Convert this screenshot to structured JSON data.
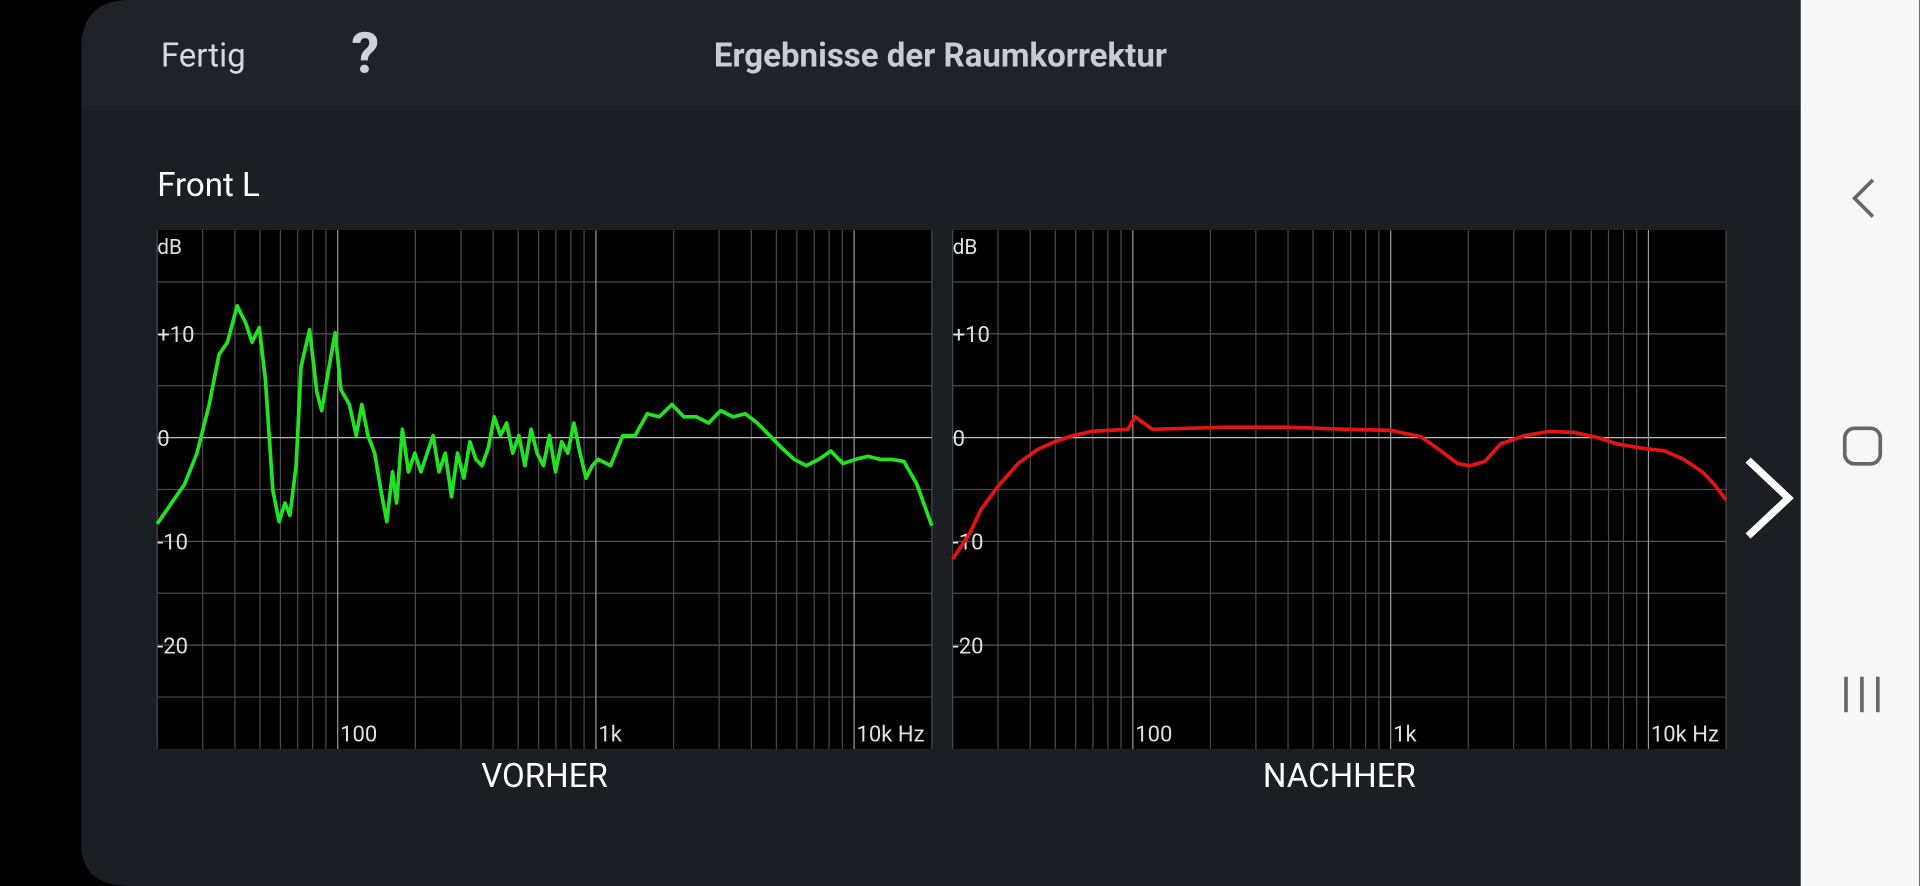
{
  "header": {
    "done": "Fertig",
    "help": "?",
    "title": "Ergebnisse der Raumkorrektur"
  },
  "section_title": "Front L",
  "chart_data": [
    {
      "type": "line",
      "xlabel": "VORHER",
      "ylabel": "dB",
      "xlog": true,
      "color": "#22e322",
      "xlim": [
        20,
        20000
      ],
      "ylim": [
        -30,
        20
      ],
      "xticks": [
        100,
        {
          "value": 1000,
          "label": "1k"
        },
        {
          "value": 10000,
          "label": "10k Hz"
        }
      ],
      "yticks": [
        {
          "value": 10,
          "label": "+10"
        },
        0,
        -10,
        -20
      ],
      "xminor": [
        20,
        30,
        40,
        50,
        60,
        70,
        80,
        90,
        200,
        300,
        400,
        500,
        600,
        700,
        800,
        900,
        2000,
        3000,
        4000,
        5000,
        6000,
        7000,
        8000,
        9000,
        20000
      ],
      "yminor": [
        15,
        5,
        -5,
        -15,
        -25
      ],
      "x": [
        20,
        25.5,
        28.5,
        31.8,
        34.7,
        37.4,
        40.8,
        44.1,
        46.6,
        49.7,
        52.5,
        56.1,
        59.3,
        62.5,
        65.3,
        69,
        72.1,
        77.8,
        83,
        86.7,
        92.6,
        97.8,
        103,
        111,
        118,
        124,
        131,
        139,
        147,
        155,
        163,
        169,
        178,
        188,
        199,
        210,
        222,
        234,
        247,
        261,
        276,
        291,
        308,
        325,
        343,
        362,
        383,
        404,
        427,
        451,
        476,
        503,
        531,
        561,
        592,
        626,
        661,
        698,
        737,
        778,
        822,
        868,
        916,
        968,
        1020,
        1140,
        1270,
        1420,
        1580,
        1760,
        1970,
        2190,
        2450,
        2730,
        3040,
        3400,
        3790,
        4220,
        4710,
        5250,
        5860,
        6530,
        7290,
        8130,
        9060,
        10100,
        11300,
        12600,
        14000,
        15600,
        17500,
        20000
      ],
      "values": [
        -8.3,
        -4.5,
        -1.5,
        3.2,
        8,
        9.2,
        12.7,
        11,
        9.2,
        10.6,
        5.6,
        -5.1,
        -8.1,
        -6.3,
        -7.5,
        -2.7,
        6.8,
        10.4,
        4.4,
        2.6,
        6.8,
        10.1,
        4.6,
        3.2,
        0.2,
        3.2,
        0.2,
        -1.5,
        -5.1,
        -8.1,
        -3.3,
        -6.3,
        0.8,
        -3.3,
        -1.5,
        -3.3,
        -1.5,
        0.2,
        -3.3,
        -1.5,
        -5.7,
        -1.5,
        -3.9,
        -0.4,
        -2.1,
        -2.7,
        -1,
        2,
        0.2,
        1.4,
        -1.5,
        0.2,
        -2.7,
        0.8,
        -1.5,
        -2.7,
        0.2,
        -3.3,
        -0.4,
        -1.5,
        1.4,
        -1.5,
        -3.9,
        -2.7,
        -2.1,
        -2.7,
        0.2,
        0.2,
        2.3,
        2,
        3.2,
        2,
        2,
        1.4,
        2.6,
        2,
        2.3,
        1.4,
        0.2,
        -1,
        -2.1,
        -2.7,
        -2.1,
        -1.3,
        -2.5,
        -2.1,
        -1.8,
        -2.1,
        -2.1,
        -2.3,
        -4.5,
        -8.5
      ]
    },
    {
      "type": "line",
      "xlabel": "NACHHER",
      "ylabel": "dB",
      "xlog": true,
      "color": "#e31414",
      "xlim": [
        20,
        20000
      ],
      "ylim": [
        -30,
        20
      ],
      "xticks": [
        100,
        {
          "value": 1000,
          "label": "1k"
        },
        {
          "value": 10000,
          "label": "10k Hz"
        }
      ],
      "yticks": [
        {
          "value": 10,
          "label": "+10"
        },
        0,
        -10,
        -20
      ],
      "xminor": [
        20,
        30,
        40,
        50,
        60,
        70,
        80,
        90,
        200,
        300,
        400,
        500,
        600,
        700,
        800,
        900,
        2000,
        3000,
        4000,
        5000,
        6000,
        7000,
        8000,
        9000,
        20000
      ],
      "yminor": [
        15,
        5,
        -5,
        -15,
        -25
      ],
      "x": [
        20,
        23.2,
        25.8,
        30.4,
        35.9,
        42.3,
        49.7,
        58.6,
        69,
        81.3,
        95.7,
        102,
        119,
        229,
        395,
        682,
        1000,
        1310,
        1550,
        1820,
        2030,
        2320,
        2670,
        3320,
        4130,
        5140,
        6390,
        7530,
        9370,
        11600,
        13700,
        16200,
        18000,
        20000
      ],
      "values": [
        -11.7,
        -9.3,
        -6.9,
        -4.5,
        -2.5,
        -1.2,
        -0.4,
        0.2,
        0.6,
        0.7,
        0.8,
        2,
        0.8,
        1,
        1,
        0.8,
        0.7,
        0.1,
        -1.2,
        -2.5,
        -2.7,
        -2.3,
        -0.6,
        0.2,
        0.6,
        0.5,
        0,
        -0.6,
        -1,
        -1.3,
        -2.1,
        -3.3,
        -4.5,
        -6
      ]
    }
  ]
}
